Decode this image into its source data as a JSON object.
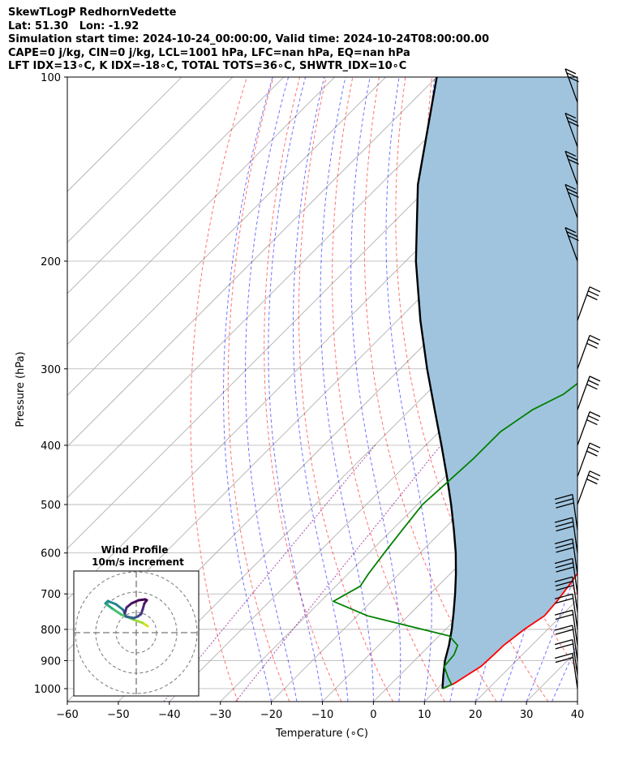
{
  "header": {
    "line1": "SkewTLogP RedhornVedette",
    "line2": "Lat: 51.30   Lon: -1.92",
    "line3": "Simulation start time: 2024-10-24_00:00:00, Valid time: 2024-10-24T08:00:00.00",
    "line4": "CAPE=0 j/kg, CIN=0 j/kg, LCL=1001 hPa, LFC=nan hPa, EQ=nan hPa",
    "line5": "LFT IDX=13∘C, K IDX=-18∘C, TOTAL TOTS=36∘C, SHWTR_IDX=10∘C"
  },
  "chart_data": {
    "type": "line",
    "subtype": "skew-T log-P diagram",
    "xlabel": "Temperature (∘C)",
    "ylabel": "Pressure (hPa)",
    "x_range_at_bottom": [
      -60,
      40
    ],
    "y_range_hpa": [
      1050,
      100
    ],
    "y_scale": "log",
    "grid": true,
    "x_ticks": [
      "−60",
      "−50",
      "−40",
      "−30",
      "−20",
      "−10",
      "0",
      "10",
      "20",
      "30",
      "40"
    ],
    "y_ticks": [
      "100",
      "200",
      "300",
      "400",
      "500",
      "600",
      "700",
      "800",
      "900",
      "1000"
    ],
    "colors": {
      "temperature": "#ff0000",
      "dewpoint": "#008000",
      "parcel": "#000000",
      "shading": "#a0c4de",
      "dry_adiabat": "#ff0000",
      "moist_adiabat": "#0000ff",
      "mixing_ratio": "#800080",
      "isotherm": "#808080"
    },
    "series": [
      {
        "role": "temperature",
        "points_p_t": [
          [
            1000,
            11
          ],
          [
            980,
            12.3
          ],
          [
            950,
            13.2
          ],
          [
            920,
            14.2
          ],
          [
            880,
            14.4
          ],
          [
            850,
            14.5
          ],
          [
            800,
            15.4
          ],
          [
            760,
            16.7
          ],
          [
            720,
            16.3
          ],
          [
            680,
            15.6
          ],
          [
            640,
            14.7
          ],
          [
            600,
            13.2
          ],
          [
            560,
            11
          ],
          [
            520,
            8.3
          ],
          [
            480,
            5.3
          ],
          [
            440,
            2.3
          ],
          [
            400,
            -0.8
          ],
          [
            360,
            -3.8
          ],
          [
            330,
            -7.1
          ],
          [
            300,
            -10.6
          ],
          [
            280,
            -13.4
          ],
          [
            260,
            -16
          ],
          [
            240,
            -18.9
          ],
          [
            220,
            -22.1
          ],
          [
            200,
            -25.5
          ],
          [
            190,
            -27.6
          ],
          [
            180,
            -29.7
          ],
          [
            170,
            -32.3
          ],
          [
            160,
            -35
          ],
          [
            150,
            -38.4
          ],
          [
            140,
            -42.6
          ],
          [
            130,
            -47
          ],
          [
            120,
            -51.9
          ],
          [
            110,
            -56.7
          ],
          [
            100,
            -62.3
          ]
        ]
      },
      {
        "role": "dewpoint",
        "points_p_t": [
          [
            1000,
            11
          ],
          [
            985,
            12
          ],
          [
            960,
            10
          ],
          [
            920,
            7
          ],
          [
            880,
            6.6
          ],
          [
            850,
            5.5
          ],
          [
            820,
            2
          ],
          [
            800,
            -4.5
          ],
          [
            760,
            -18
          ],
          [
            720,
            -27.5
          ],
          [
            680,
            -25.2
          ],
          [
            650,
            -26
          ],
          [
            600,
            -27
          ],
          [
            550,
            -28
          ],
          [
            500,
            -29
          ],
          [
            460,
            -28.5
          ],
          [
            420,
            -28
          ],
          [
            380,
            -28
          ],
          [
            350,
            -26
          ],
          [
            330,
            -23
          ],
          [
            310,
            -22
          ],
          [
            295,
            -25
          ],
          [
            280,
            -26
          ],
          [
            250,
            -29.5
          ],
          [
            220,
            -33
          ],
          [
            200,
            -36
          ],
          [
            185,
            -38.5
          ],
          [
            170,
            -42
          ],
          [
            160,
            -46
          ],
          [
            150,
            -52
          ],
          [
            140,
            -57
          ],
          [
            130,
            -60.5
          ],
          [
            120,
            -61.5
          ],
          [
            110,
            -66
          ],
          [
            100,
            -71
          ]
        ]
      },
      {
        "role": "parcel",
        "points_p_t": [
          [
            1000,
            11
          ],
          [
            990,
            10.5
          ],
          [
            950,
            8.5
          ],
          [
            900,
            6
          ],
          [
            850,
            3.8
          ],
          [
            800,
            1.2
          ],
          [
            750,
            -1.8
          ],
          [
            700,
            -5.1
          ],
          [
            650,
            -8.8
          ],
          [
            600,
            -13
          ],
          [
            550,
            -17.9
          ],
          [
            500,
            -23.4
          ],
          [
            450,
            -29.7
          ],
          [
            400,
            -36.9
          ],
          [
            350,
            -45.2
          ],
          [
            300,
            -54.7
          ],
          [
            250,
            -65.5
          ],
          [
            200,
            -78
          ],
          [
            150,
            -92.6
          ],
          [
            100,
            -110
          ]
        ]
      }
    ],
    "barb_levels_hpa": [
      1000,
      950,
      900,
      850,
      800,
      750,
      700,
      650,
      600,
      550,
      500,
      450,
      400,
      350,
      300,
      250,
      200,
      170,
      150,
      130,
      110
    ],
    "inset": {
      "title_line1": "Wind Profile",
      "title_line2": "10m/s increment"
    }
  }
}
